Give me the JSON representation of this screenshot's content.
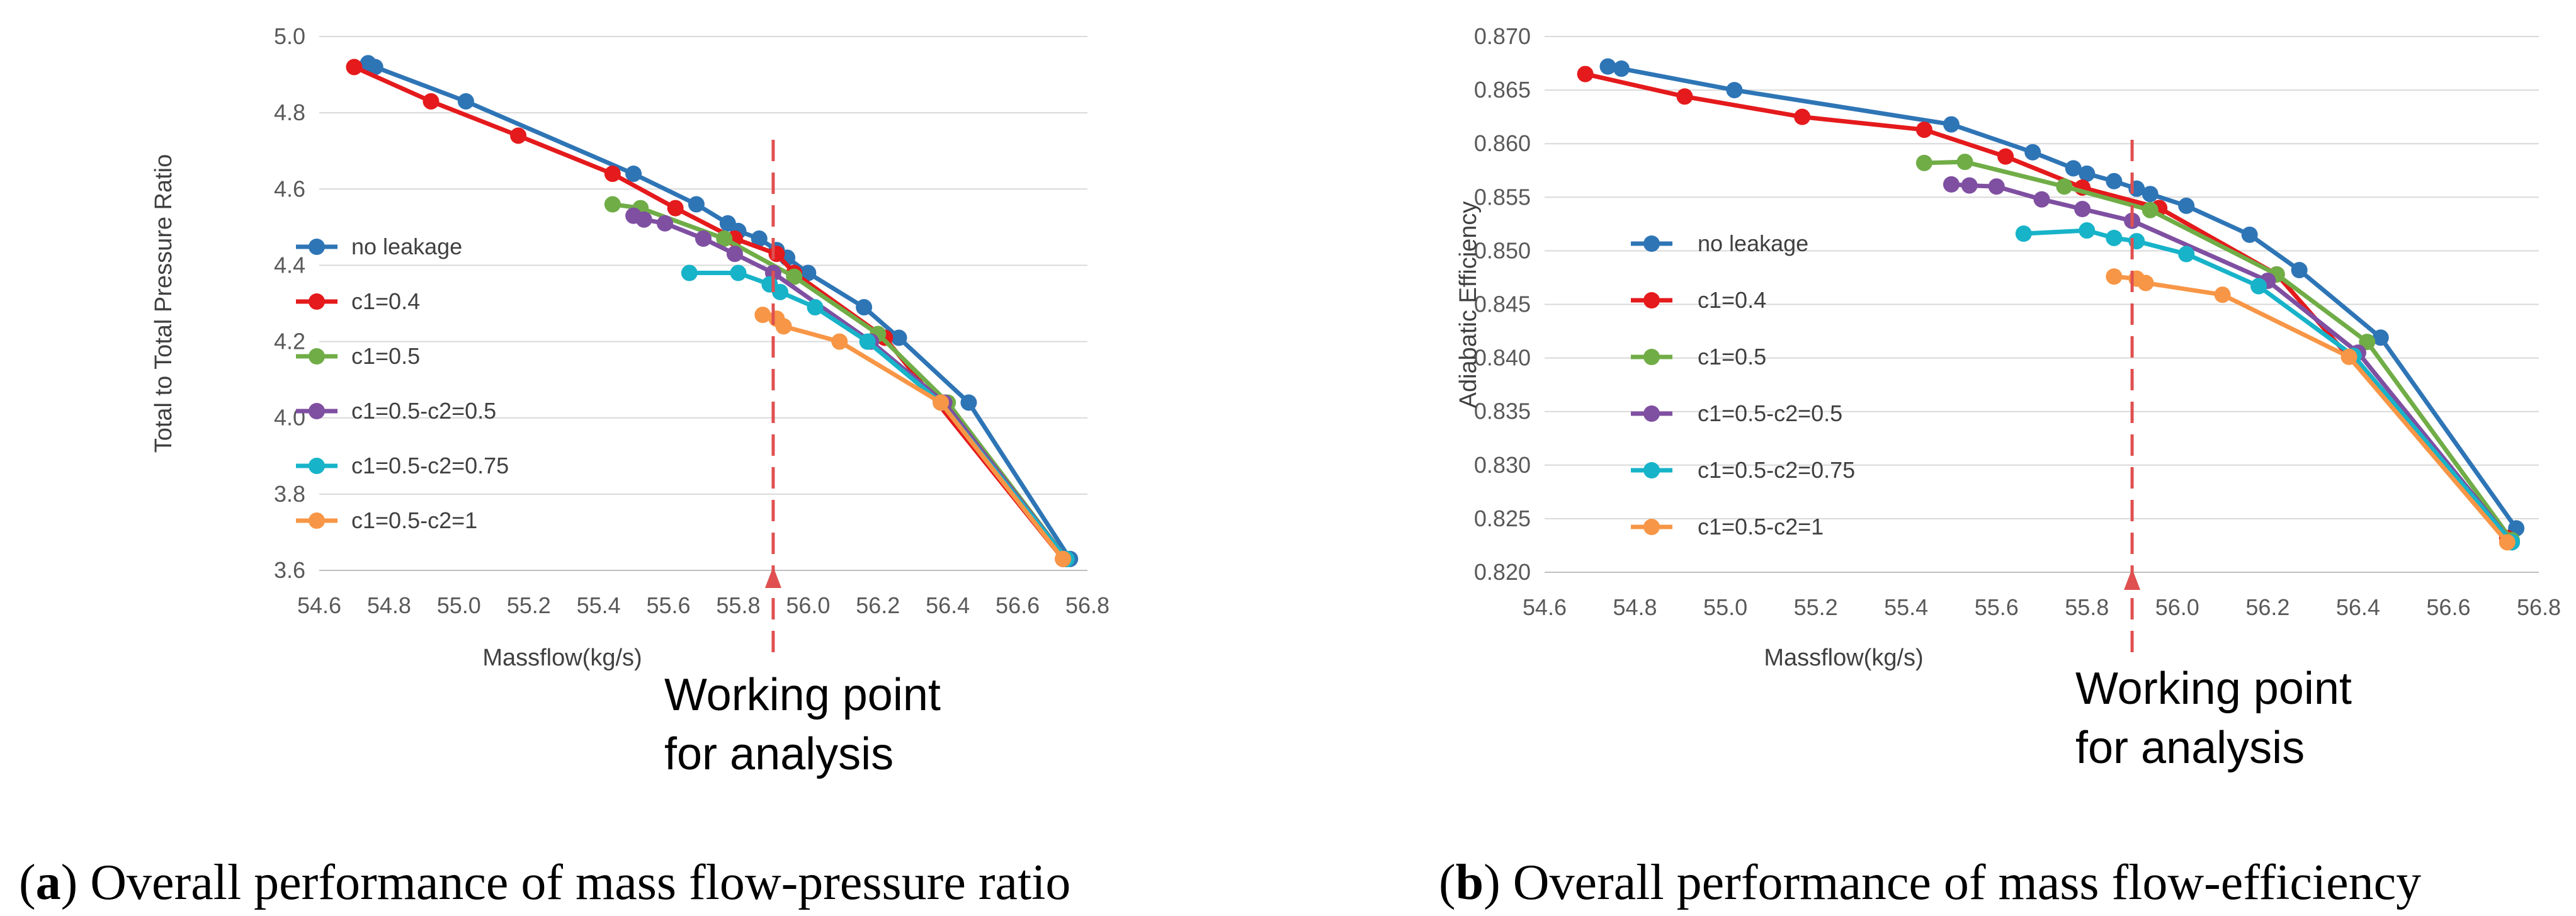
{
  "colors": {
    "no_leakage": "#2e75b6",
    "c1_0_4": "#e41a1c",
    "c1_0_5": "#70ad47",
    "c1_05_c2_05": "#7f4fa1",
    "c1_05_c2_075": "#17b3c9",
    "c1_05_c2_1": "#f79646",
    "working_line": "#e05050",
    "grid": "#d9d9d9"
  },
  "chart_data": [
    {
      "type": "line",
      "caption_letter": "a",
      "caption_text": " Overall performance of mass flow-pressure ratio",
      "xlabel": "Massflow(kg/s)",
      "ylabel": "Total to Total Pressure Ratio",
      "xlim": [
        54.6,
        56.8
      ],
      "ylim": [
        3.6,
        5.0
      ],
      "xticks": [
        "54.6",
        "54.8",
        "55.0",
        "55.2",
        "55.4",
        "55.6",
        "55.8",
        "56.0",
        "56.2",
        "56.4",
        "56.6",
        "56.8"
      ],
      "yticks": [
        "3.6",
        "3.8",
        "4.0",
        "4.2",
        "4.4",
        "4.6",
        "4.8",
        "5.0"
      ],
      "grid": true,
      "legend_position": "left",
      "working_point_x": 55.9,
      "annotation": [
        "Working point",
        "for analysis"
      ],
      "series": [
        {
          "name": "no leakage",
          "color_key": "no_leakage",
          "x": [
            54.74,
            54.76,
            55.02,
            55.5,
            55.68,
            55.77,
            55.8,
            55.86,
            55.91,
            55.94,
            56.0,
            56.16,
            56.26,
            56.46,
            56.75
          ],
          "y": [
            4.93,
            4.92,
            4.83,
            4.64,
            4.56,
            4.51,
            4.49,
            4.47,
            4.44,
            4.42,
            4.38,
            4.29,
            4.21,
            4.04,
            3.63
          ]
        },
        {
          "name": "c1=0.4",
          "color_key": "c1_0_4",
          "x": [
            54.7,
            54.92,
            55.17,
            55.44,
            55.62,
            55.79,
            55.91,
            55.96,
            56.22,
            56.73
          ],
          "y": [
            4.92,
            4.83,
            4.74,
            4.64,
            4.55,
            4.47,
            4.43,
            4.38,
            4.21,
            3.63
          ]
        },
        {
          "name": "c1=0.5",
          "color_key": "c1_0_5",
          "x": [
            55.44,
            55.52,
            55.76,
            55.96,
            56.2,
            56.4,
            56.74
          ],
          "y": [
            4.56,
            4.55,
            4.47,
            4.37,
            4.22,
            4.04,
            3.63
          ]
        },
        {
          "name": "c1=0.5-c2=0.5",
          "color_key": "c1_05_c2_05",
          "x": [
            55.5,
            55.53,
            55.59,
            55.7,
            55.79,
            55.9,
            56.18,
            56.39,
            56.74
          ],
          "y": [
            4.53,
            4.52,
            4.51,
            4.47,
            4.43,
            4.38,
            4.2,
            4.04,
            3.63
          ]
        },
        {
          "name": "c1=0.5-c2=0.75",
          "color_key": "c1_05_c2_075",
          "x": [
            55.66,
            55.8,
            55.89,
            55.92,
            56.02,
            56.17,
            56.38,
            56.74
          ],
          "y": [
            4.38,
            4.38,
            4.35,
            4.33,
            4.29,
            4.2,
            4.04,
            3.63
          ]
        },
        {
          "name": "c1=0.5-c2=1",
          "color_key": "c1_05_c2_1",
          "x": [
            55.87,
            55.91,
            55.93,
            56.09,
            56.38,
            56.73
          ],
          "y": [
            4.27,
            4.26,
            4.24,
            4.2,
            4.04,
            3.63
          ]
        }
      ]
    },
    {
      "type": "line",
      "caption_letter": "b",
      "caption_text": " Overall performance of mass flow-efficiency",
      "xlabel": "Massflow(kg/s)",
      "ylabel": "Adiabatic Efficiency",
      "xlim": [
        54.6,
        56.8
      ],
      "ylim": [
        0.82,
        0.87
      ],
      "xticks": [
        "54.6",
        "54.8",
        "55.0",
        "55.2",
        "55.4",
        "55.6",
        "55.8",
        "56.0",
        "56.2",
        "56.4",
        "56.6",
        "56.8"
      ],
      "yticks": [
        "0.820",
        "0.825",
        "0.830",
        "0.835",
        "0.840",
        "0.845",
        "0.850",
        "0.855",
        "0.860",
        "0.865",
        "0.870"
      ],
      "grid": true,
      "legend_position": "left",
      "working_point_x": 55.9,
      "annotation": [
        "Working point",
        "for analysis"
      ],
      "series": [
        {
          "name": "no leakage",
          "color_key": "no_leakage",
          "x": [
            54.74,
            54.77,
            55.02,
            55.5,
            55.68,
            55.77,
            55.8,
            55.86,
            55.91,
            55.94,
            56.02,
            56.16,
            56.27,
            56.45,
            56.75
          ],
          "y": [
            0.8672,
            0.867,
            0.865,
            0.8618,
            0.8592,
            0.8577,
            0.8572,
            0.8565,
            0.8558,
            0.8553,
            0.8542,
            0.8515,
            0.8482,
            0.8419,
            0.8241
          ]
        },
        {
          "name": "c1=0.4",
          "color_key": "c1_0_4",
          "x": [
            54.69,
            54.91,
            55.17,
            55.44,
            55.62,
            55.79,
            55.96,
            56.22,
            56.73
          ],
          "y": [
            0.8665,
            0.8644,
            0.8625,
            0.8613,
            0.8588,
            0.8559,
            0.854,
            0.8478,
            0.8232
          ]
        },
        {
          "name": "c1=0.5",
          "color_key": "c1_0_5",
          "x": [
            55.44,
            55.53,
            55.75,
            55.94,
            56.22,
            56.42,
            56.74
          ],
          "y": [
            0.8582,
            0.8583,
            0.856,
            0.8538,
            0.8478,
            0.8415,
            0.823
          ]
        },
        {
          "name": "c1=0.5-c2=0.5",
          "color_key": "c1_05_c2_05",
          "x": [
            55.5,
            55.54,
            55.6,
            55.7,
            55.79,
            55.9,
            56.2,
            56.4,
            56.74
          ],
          "y": [
            0.8562,
            0.8561,
            0.856,
            0.8548,
            0.8539,
            0.8528,
            0.8472,
            0.8405,
            0.8228
          ]
        },
        {
          "name": "c1=0.5-c2=0.75",
          "color_key": "c1_05_c2_075",
          "x": [
            55.66,
            55.8,
            55.86,
            55.91,
            56.02,
            56.18,
            56.39,
            56.74
          ],
          "y": [
            0.8516,
            0.8519,
            0.8512,
            0.8509,
            0.8497,
            0.8467,
            0.8402,
            0.8228
          ]
        },
        {
          "name": "c1=0.5-c2=1",
          "color_key": "c1_05_c2_1",
          "x": [
            55.86,
            55.91,
            55.93,
            56.1,
            56.38,
            56.73
          ],
          "y": [
            0.8476,
            0.8474,
            0.847,
            0.8459,
            0.8401,
            0.8228
          ]
        }
      ]
    }
  ]
}
